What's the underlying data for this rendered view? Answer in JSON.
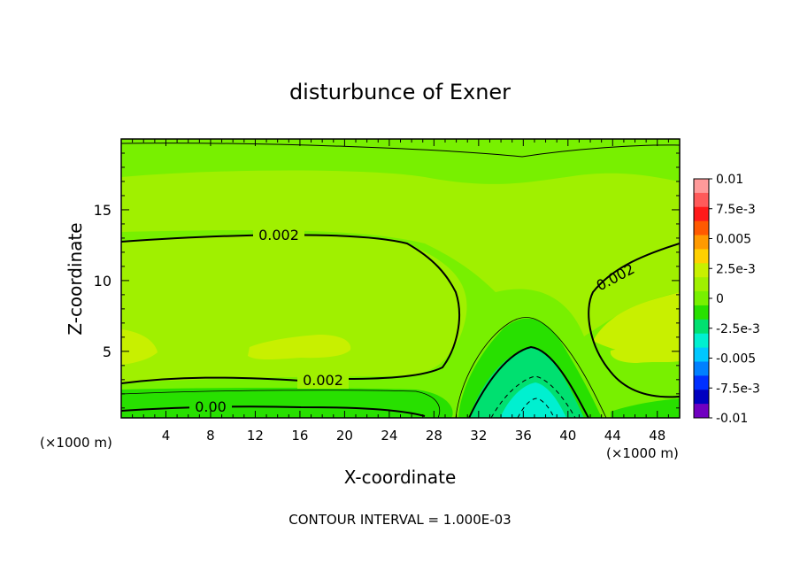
{
  "chart_data": {
    "type": "heatmap",
    "title": "disturbunce of Exner",
    "xlabel": "X-coordinate",
    "ylabel": "Z-coordinate",
    "x_unit": "(×1000 m)",
    "x_unit_right": "(×1000 m)",
    "xlim": [
      0,
      50
    ],
    "ylim": [
      0.3,
      20
    ],
    "x_ticks": [
      4,
      8,
      12,
      16,
      20,
      24,
      28,
      32,
      36,
      40,
      44,
      48
    ],
    "y_ticks": [
      5,
      10,
      15
    ],
    "colorbar": {
      "levels": [
        "0.01",
        "7.5e-3",
        "0.005",
        "2.5e-3",
        "0",
        "-2.5e-3",
        "-0.005",
        "-7.5e-3",
        "-0.01"
      ],
      "colors": [
        "#ff9a9a",
        "#ff5a5a",
        "#ff1a1a",
        "#ff5a00",
        "#ff9a00",
        "#ffd000",
        "#c8f000",
        "#a0f000",
        "#78f000",
        "#28e000",
        "#00e070",
        "#00f0d0",
        "#00c8ff",
        "#0080ff",
        "#0030ff",
        "#0000c0",
        "#7000c0"
      ]
    },
    "contour_labels": [
      "0.002",
      "0.002",
      "0.002",
      "0.00"
    ],
    "contour_interval": "CONTOUR INTERVAL = 1.000E-03",
    "fill_colors": {
      "pale": "#a0f000",
      "mid": "#78f000",
      "yellow": "#c8f000",
      "green": "#28e000",
      "teal": "#00e070",
      "cyan": "#00f0d0"
    }
  }
}
